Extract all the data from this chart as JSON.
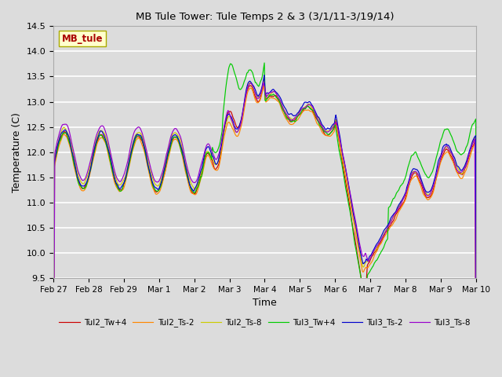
{
  "title": "MB Tule Tower: Tule Temps 2 & 3 (3/1/11-3/19/14)",
  "xlabel": "Time",
  "ylabel": "Temperature (C)",
  "ylim": [
    9.5,
    14.5
  ],
  "background_color": "#dcdcdc",
  "plot_bg_color": "#dcdcdc",
  "grid_color": "#ffffff",
  "annotation_text": "MB_tule",
  "annotation_bg": "#ffffcc",
  "annotation_border": "#aaaa00",
  "annotation_text_color": "#aa0000",
  "series": [
    {
      "label": "Tul2_Tw+4",
      "color": "#cc0000"
    },
    {
      "label": "Tul2_Ts-2",
      "color": "#ff8800"
    },
    {
      "label": "Tul2_Ts-8",
      "color": "#cccc00"
    },
    {
      "label": "Tul3_Tw+4",
      "color": "#00cc00"
    },
    {
      "label": "Tul3_Ts-2",
      "color": "#0000cc"
    },
    {
      "label": "Tul3_Ts-8",
      "color": "#9900cc"
    }
  ],
  "xtick_labels": [
    "Feb 27",
    "Feb 28",
    "Feb 29",
    "Mar 1",
    "Mar 2",
    "Mar 3",
    "Mar 4",
    "Mar 5",
    "Mar 6",
    "Mar 7",
    "Mar 8",
    "Mar 9",
    "Mar 10"
  ],
  "ytick_positions": [
    9.5,
    10.0,
    10.5,
    11.0,
    11.5,
    12.0,
    12.5,
    13.0,
    13.5,
    14.0,
    14.5
  ]
}
